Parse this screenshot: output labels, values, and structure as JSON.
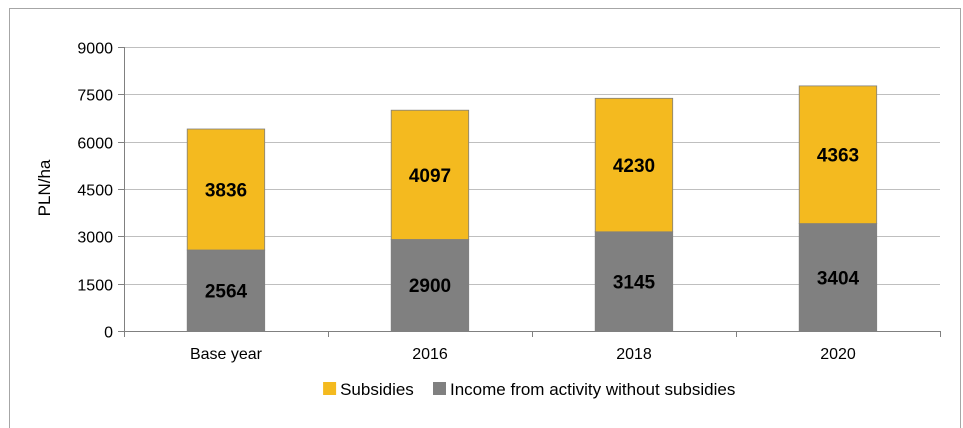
{
  "chart_data": {
    "type": "bar",
    "stacked": true,
    "categories": [
      "Base year",
      "2016",
      "2018",
      "2020"
    ],
    "series": [
      {
        "name": "Income from activity without subsidies",
        "values": [
          2564,
          2900,
          3145,
          3404
        ],
        "color": "#808080"
      },
      {
        "name": "Subsidies",
        "values": [
          3836,
          4097,
          4230,
          4363
        ],
        "color": "#F4BA1F"
      }
    ],
    "legend_order": [
      1,
      0
    ],
    "title": "",
    "xlabel": "",
    "ylabel": "PLN/ha",
    "ylim": [
      0,
      9000
    ],
    "yticks": [
      0,
      1500,
      3000,
      4500,
      6000,
      7500,
      9000
    ],
    "grid": true,
    "legend": "bottom"
  }
}
